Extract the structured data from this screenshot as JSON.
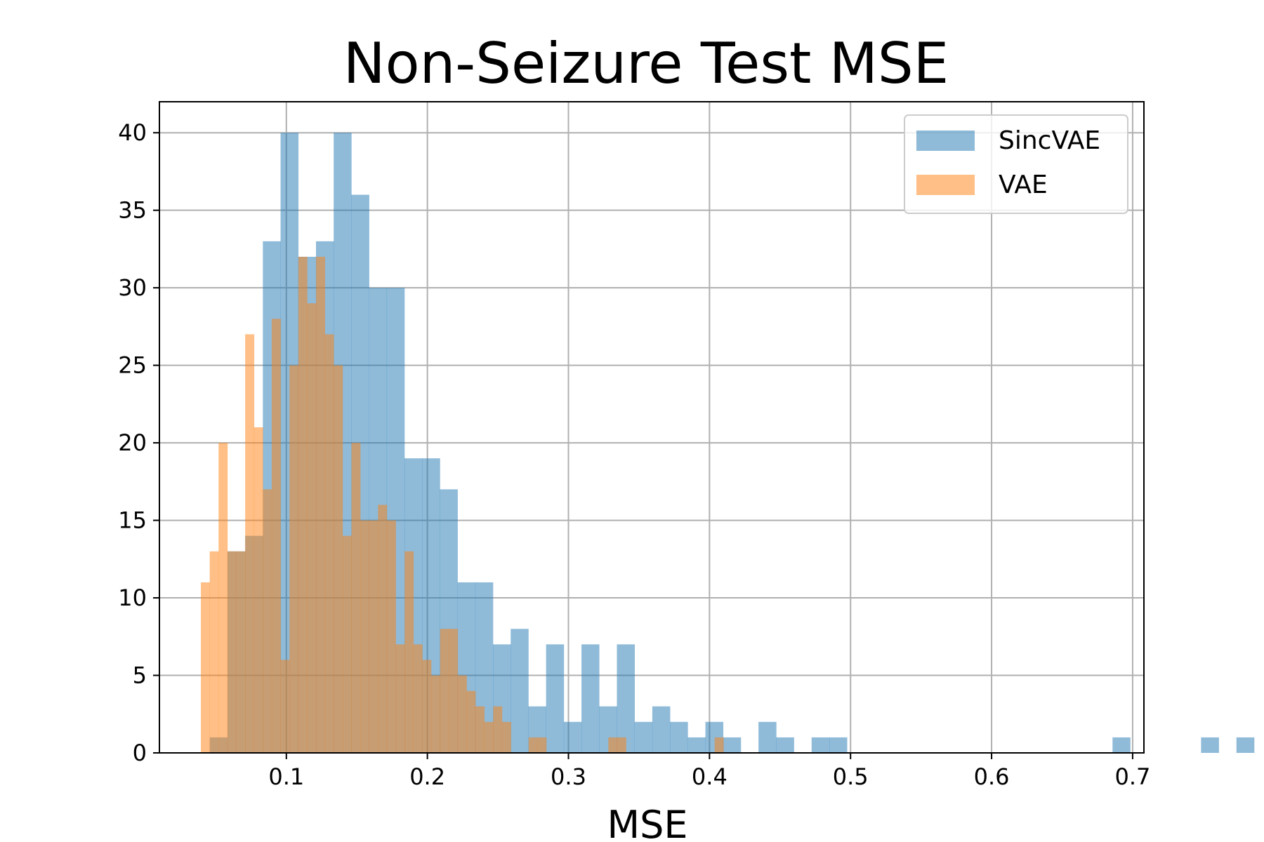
{
  "chart_data": {
    "type": "bar",
    "title": "Non-Seizure Test MSE",
    "xlabel": "MSE",
    "ylabel": "",
    "xlim": [
      0.01,
      0.708
    ],
    "ylim": [
      0,
      42
    ],
    "xticks": [
      "0.1",
      "0.2",
      "0.3",
      "0.4",
      "0.5",
      "0.6",
      "0.7"
    ],
    "yticks": [
      "0",
      "5",
      "10",
      "15",
      "20",
      "25",
      "30",
      "35",
      "40"
    ],
    "grid": true,
    "legend_position": "top-right",
    "series": [
      {
        "name": "SincVAE",
        "color": "#1f77b4",
        "opacity": 0.5,
        "bin_start": 0.0457,
        "bin_width": 0.01255,
        "counts": [
          1,
          13,
          14,
          33,
          40,
          32,
          33,
          40,
          36,
          30,
          30,
          19,
          19,
          17,
          11,
          11,
          7,
          8,
          3,
          7,
          2,
          7,
          3,
          7,
          2,
          3,
          2,
          1,
          2,
          1,
          0,
          2,
          1,
          0,
          1,
          1,
          0,
          0,
          0,
          0,
          0,
          0,
          0,
          0,
          0,
          0,
          0,
          0,
          0,
          0,
          0,
          1,
          0,
          0,
          0,
          0,
          1,
          0,
          1
        ]
      },
      {
        "name": "VAE",
        "color": "#ff7f0e",
        "opacity": 0.5,
        "bin_start": 0.0394,
        "bin_width": 0.00628,
        "counts": [
          11,
          13,
          20,
          13,
          13,
          27,
          21,
          17,
          28,
          6,
          25,
          32,
          29,
          32,
          27,
          25,
          14,
          20,
          15,
          15,
          16,
          15,
          7,
          13,
          7,
          6,
          5,
          8,
          8,
          5,
          4,
          3,
          2,
          3,
          2,
          0,
          0,
          1,
          1,
          0,
          0,
          0,
          0,
          0,
          0,
          0,
          1,
          1,
          0,
          0,
          0,
          0,
          0,
          0,
          0,
          0,
          0,
          0,
          1
        ]
      }
    ]
  }
}
